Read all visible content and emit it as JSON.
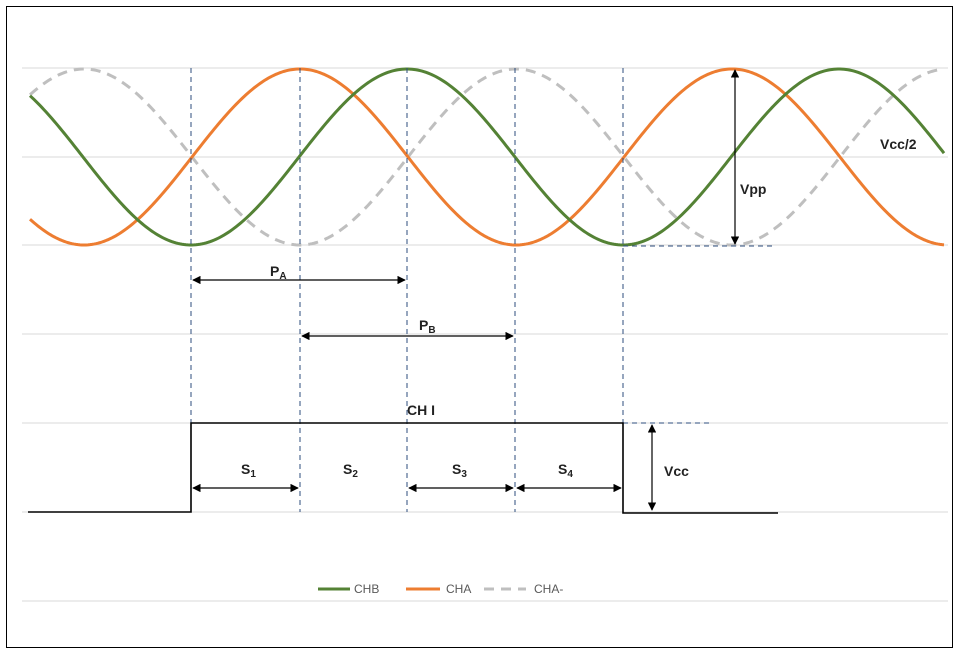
{
  "diagram": {
    "colors": {
      "chb": "#548235",
      "cha": "#ed7d31",
      "cha_neg": "#bfbfbf",
      "marker": "#2e4e7e",
      "gridline": "#d9d9d9",
      "ink": "#000000"
    },
    "labels": {
      "vcc_half": "Vcc/2",
      "vpp": "Vpp",
      "pa_main": "P",
      "pa_sub": "A",
      "pb_main": "P",
      "pb_sub": "B",
      "ch1": "CH I",
      "s1_main": "S",
      "s1_sub": "1",
      "s2_main": "S",
      "s2_sub": "2",
      "s3_main": "S",
      "s3_sub": "3",
      "s4_main": "S",
      "s4_sub": "4",
      "vcc": "Vcc"
    },
    "legend": [
      {
        "key": "chb",
        "label": "CHB",
        "dashed": false
      },
      {
        "key": "cha",
        "label": "CHA",
        "dashed": false
      },
      {
        "key": "cha_neg",
        "label": "CHA-",
        "dashed": true
      }
    ]
  }
}
